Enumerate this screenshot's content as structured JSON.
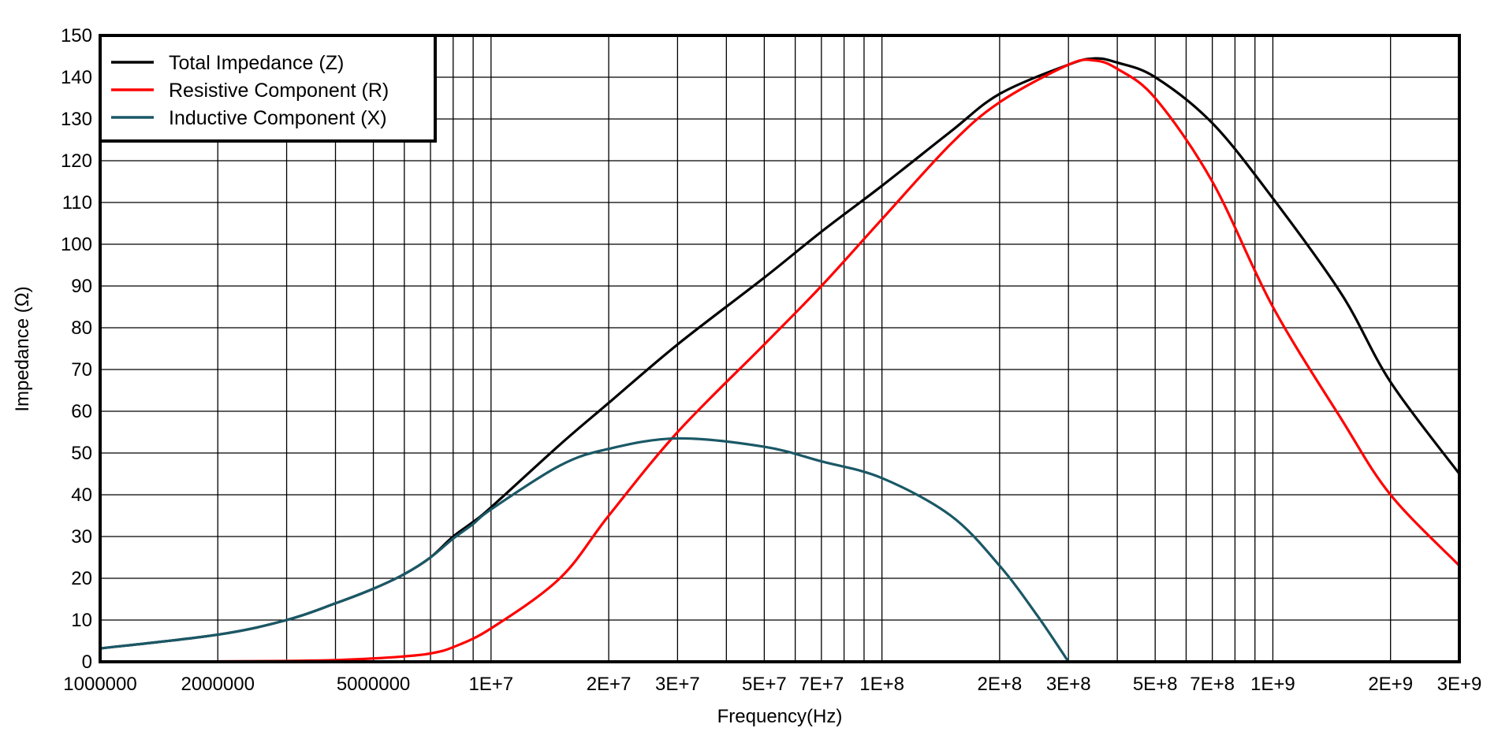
{
  "chart_data": {
    "type": "line",
    "title": "",
    "xlabel": "Frequency(Hz)",
    "ylabel": "Impedance (Ω)",
    "x_scale": "log",
    "xlim": [
      1000000,
      3000000000
    ],
    "ylim": [
      0,
      150
    ],
    "grid": true,
    "legend_position": "top-left",
    "x_tick_values": [
      1000000,
      2000000,
      5000000,
      10000000,
      20000000,
      30000000,
      50000000,
      70000000,
      100000000,
      200000000,
      300000000,
      500000000,
      700000000,
      1000000000,
      2000000000,
      3000000000
    ],
    "x_tick_labels": [
      "1000000",
      "2000000",
      "5000000",
      "1E+7",
      "2E+7",
      "3E+7",
      "5E+7",
      "7E+7",
      "1E+8",
      "2E+8",
      "3E+8",
      "5E+8",
      "7E+8",
      "1E+9",
      "2E+9",
      "3E+9"
    ],
    "y_tick_values": [
      0,
      10,
      20,
      30,
      40,
      50,
      60,
      70,
      80,
      90,
      100,
      110,
      120,
      130,
      140,
      150
    ],
    "y_tick_labels": [
      "0",
      "10",
      "20",
      "30",
      "40",
      "50",
      "60",
      "70",
      "80",
      "90",
      "100",
      "110",
      "120",
      "130",
      "140",
      "150"
    ],
    "series": [
      {
        "name": "Total Impedance (Z)",
        "color": "#000000",
        "x": [
          1000000,
          2000000,
          3000000,
          4000000,
          5000000,
          6000000,
          7000000,
          8000000,
          9000000,
          10000000,
          15000000,
          20000000,
          30000000,
          50000000,
          70000000,
          100000000,
          150000000,
          200000000,
          300000000,
          350000000,
          400000000,
          500000000,
          700000000,
          1000000000,
          1500000000,
          2000000000,
          3000000000
        ],
        "y": [
          3.2,
          6.5,
          10,
          14,
          17.5,
          21,
          25,
          30,
          33.5,
          37,
          52,
          62,
          76,
          92,
          103,
          114,
          127,
          136,
          143,
          144.5,
          143.5,
          140,
          129,
          111,
          88,
          67,
          45
        ]
      },
      {
        "name": "Resistive Component (R)",
        "color": "#ff0000",
        "x": [
          2000000,
          3000000,
          4000000,
          5000000,
          6000000,
          7000000,
          8000000,
          10000000,
          15000000,
          20000000,
          30000000,
          50000000,
          70000000,
          100000000,
          150000000,
          200000000,
          300000000,
          350000000,
          400000000,
          500000000,
          700000000,
          1000000000,
          1500000000,
          2000000000,
          3000000000
        ],
        "y": [
          0.1,
          0.2,
          0.4,
          0.8,
          1.3,
          2,
          3.5,
          8,
          20,
          35,
          55,
          76,
          90,
          106,
          124,
          134,
          143,
          144,
          142,
          135,
          115,
          85,
          58,
          40,
          23
        ]
      },
      {
        "name": "Inductive Component (X)",
        "color": "#1a5866",
        "x": [
          1000000,
          2000000,
          3000000,
          4000000,
          5000000,
          6000000,
          7000000,
          8000000,
          9000000,
          10000000,
          15000000,
          20000000,
          30000000,
          50000000,
          70000000,
          100000000,
          150000000,
          200000000,
          250000000,
          300000000
        ],
        "y": [
          3.2,
          6.5,
          10,
          14,
          17.5,
          21,
          25,
          29.5,
          33,
          36.5,
          47,
          51,
          53.5,
          51.5,
          48,
          44,
          35,
          23,
          11,
          0
        ]
      }
    ]
  }
}
